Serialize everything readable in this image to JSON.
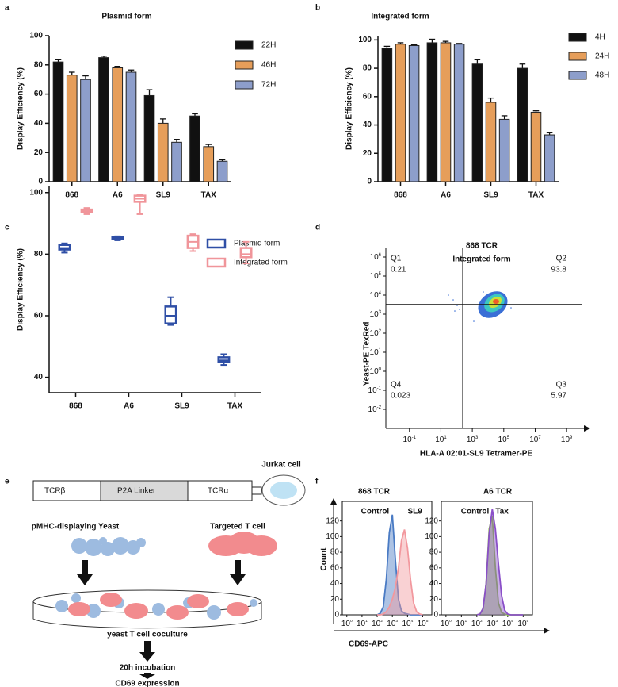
{
  "chart_data": [
    {
      "type": "bar",
      "panel_label": "a",
      "title": "Plasmid form",
      "ylabel": "Display Efficiency (%)",
      "categories": [
        "868",
        "A6",
        "SL9",
        "TAX"
      ],
      "series": [
        {
          "name": "22H",
          "color": "#111111",
          "values": [
            82,
            85,
            59,
            45
          ],
          "errors": [
            1.5,
            1,
            4,
            1.5
          ]
        },
        {
          "name": "46H",
          "color": "#e69e5a",
          "values": [
            73,
            78,
            40,
            24
          ],
          "errors": [
            2,
            1,
            3,
            1.5
          ]
        },
        {
          "name": "72H",
          "color": "#8d9ecb",
          "values": [
            70,
            75,
            27,
            14
          ],
          "errors": [
            2.5,
            1.5,
            2,
            1
          ]
        }
      ],
      "ylim": [
        0,
        100
      ],
      "yticks": [
        0,
        20,
        40,
        60,
        80,
        100
      ]
    },
    {
      "type": "bar",
      "panel_label": "b",
      "title": "Integrated form",
      "ylabel": "Display Efficiency (%)",
      "categories": [
        "868",
        "A6",
        "SL9",
        "TAX"
      ],
      "series": [
        {
          "name": "4H",
          "color": "#111111",
          "values": [
            94,
            98,
            83,
            80
          ],
          "errors": [
            1.5,
            2.5,
            3,
            3
          ]
        },
        {
          "name": "24H",
          "color": "#e69e5a",
          "values": [
            97,
            98,
            56,
            49
          ],
          "errors": [
            1,
            1,
            3,
            1
          ]
        },
        {
          "name": "48H",
          "color": "#8d9ecb",
          "values": [
            96,
            97,
            44,
            33
          ],
          "errors": [
            0.5,
            0.5,
            2.5,
            1.5
          ]
        }
      ],
      "ylim": [
        0,
        103
      ],
      "yticks": [
        0,
        20,
        40,
        60,
        80,
        100
      ]
    },
    {
      "type": "box",
      "panel_label": "c",
      "ylabel": "Display Efficiency (%)",
      "categories": [
        "868",
        "A6",
        "SL9",
        "TAX"
      ],
      "series": [
        {
          "name": "Plasmid form",
          "color": "#2f4fa6",
          "min": [
            80.5,
            84.5,
            57,
            44
          ],
          "q1": [
            81.5,
            84.8,
            57.5,
            45
          ],
          "median": [
            82,
            85,
            60,
            45.5
          ],
          "q3": [
            83,
            85.5,
            63,
            46.5
          ],
          "max": [
            83.5,
            85.8,
            66,
            47.5
          ]
        },
        {
          "name": "Integrated form",
          "color": "#f0959a",
          "min": [
            93,
            93,
            81,
            77
          ],
          "q1": [
            93.8,
            97,
            82,
            79
          ],
          "median": [
            94,
            98,
            84,
            80
          ],
          "q3": [
            94.5,
            99,
            86,
            82
          ],
          "max": [
            95,
            99.3,
            86.5,
            84
          ]
        }
      ],
      "ylim": [
        35,
        102
      ],
      "yticks": [
        40,
        60,
        80,
        100
      ]
    },
    {
      "type": "quadrant",
      "panel_label": "d",
      "title": "868  TCR",
      "subtitle": "Integrated form",
      "xlabel": "HLA-A 02:01-SL9 Tetramer-PE",
      "ylabel": "Yeast-PE TexRed",
      "tick_base": "10",
      "xlim": [
        -2.5,
        10
      ],
      "xticks": [
        -1,
        1,
        3,
        5,
        7,
        9
      ],
      "ylim": [
        -3,
        6.5
      ],
      "yticks": [
        -2,
        -1,
        0,
        1,
        2,
        3,
        4,
        5,
        6
      ],
      "gate_x": 2.4,
      "gate_y": 3.5,
      "quadrants": [
        {
          "name": "Q1",
          "value": 0.21
        },
        {
          "name": "Q2",
          "value": 93.8
        },
        {
          "name": "Q3",
          "value": 5.97
        },
        {
          "name": "Q4",
          "value": 0.023
        }
      ]
    },
    {
      "type": "area",
      "panel_label": "f",
      "title": "868  TCR",
      "xlabel": "CD69-APC",
      "ylabel": "Count",
      "tick_base": "10",
      "x": [
        2.0,
        2.2,
        2.4,
        2.6,
        2.8,
        3.0,
        3.2,
        3.4,
        3.6,
        3.8,
        4.0,
        4.2,
        4.4,
        4.6,
        4.8,
        5.0
      ],
      "series": [
        {
          "name": "Control",
          "color": "#4a7bc4",
          "values": [
            0,
            2,
            10,
            45,
            105,
            128,
            70,
            20,
            5,
            2,
            1,
            0,
            0,
            0,
            0,
            0
          ]
        },
        {
          "name": "SL9",
          "color": "#f2989e",
          "values": [
            0,
            0,
            1,
            4,
            10,
            20,
            35,
            60,
            95,
            109,
            85,
            45,
            15,
            4,
            1,
            0
          ]
        }
      ],
      "xlim": [
        -0.3,
        5.6
      ],
      "xticks": [
        0,
        1,
        2,
        3,
        4,
        5
      ],
      "ylim": [
        0,
        145
      ],
      "yticks": [
        0,
        20,
        40,
        60,
        80,
        100,
        120
      ]
    },
    {
      "type": "area",
      "title": "A6  TCR",
      "tick_base": "10",
      "x": [
        2.0,
        2.2,
        2.4,
        2.6,
        2.8,
        3.0,
        3.2,
        3.4,
        3.6,
        3.8,
        4.0,
        4.2,
        4.4,
        4.6,
        4.8,
        5.0
      ],
      "series": [
        {
          "name": "Control",
          "color": "#8cc63f",
          "values": [
            0,
            1,
            8,
            40,
            110,
            126,
            60,
            15,
            3,
            1,
            0,
            0,
            0,
            0,
            0,
            0
          ]
        },
        {
          "name": "Tax",
          "color": "#8a4fc8",
          "values": [
            0,
            1,
            8,
            40,
            105,
            135,
            110,
            65,
            25,
            6,
            1,
            0,
            0,
            0,
            0,
            0
          ]
        }
      ],
      "xlim": [
        -0.3,
        5.6
      ],
      "xticks": [
        0,
        1,
        2,
        3,
        4,
        5
      ],
      "ylim": [
        0,
        145
      ],
      "yticks": [
        0,
        20,
        40,
        60,
        80,
        100,
        120
      ]
    }
  ],
  "diagram": {
    "panel_label": "e",
    "construct": [
      "TCRβ",
      "P2A Linker",
      "TCRα"
    ],
    "cell": "Jurkat cell",
    "yeast": "pMHC-displaying Yeast",
    "tcell": "Targeted T cell",
    "steps": [
      "yeast T cell coculture",
      "20h incubation",
      "CD69 expression"
    ]
  }
}
